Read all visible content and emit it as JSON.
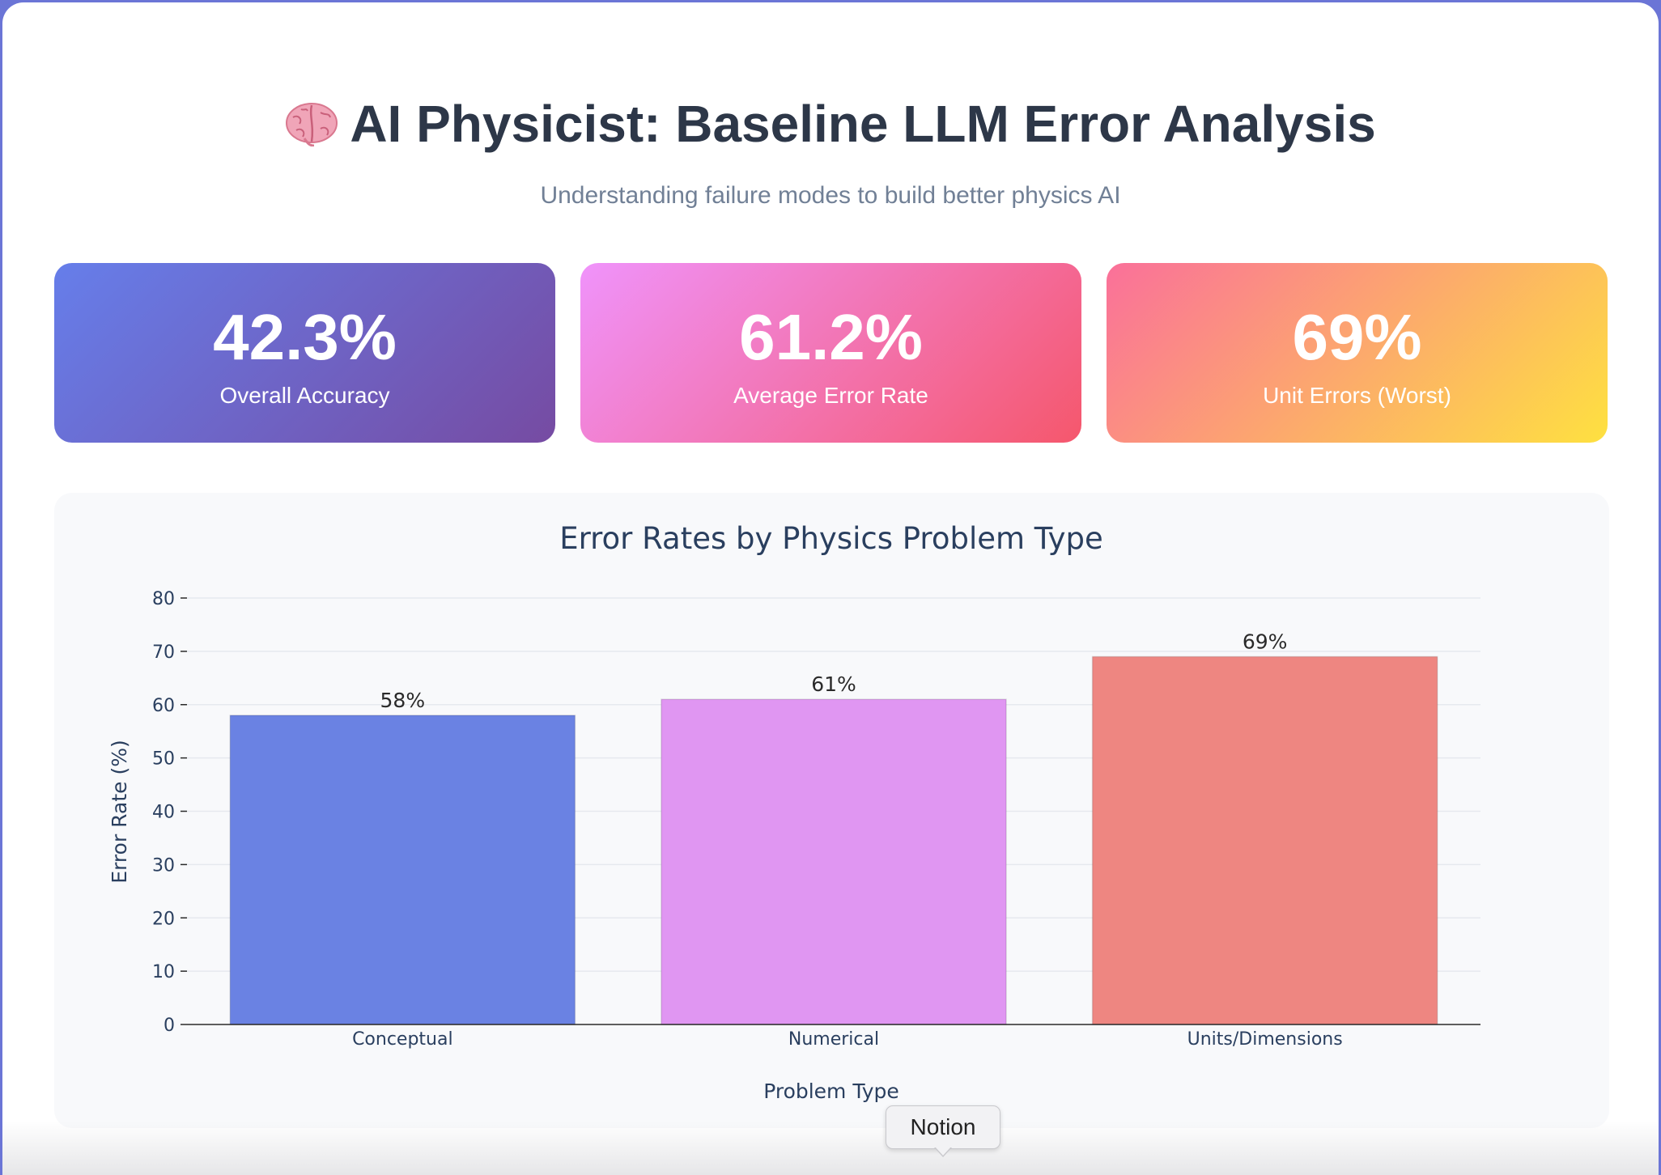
{
  "header": {
    "title": "AI Physicist: Baseline LLM Error Analysis",
    "title_icon": "brain-emoji",
    "subtitle": "Understanding failure modes to build better physics AI"
  },
  "stats": [
    {
      "value": "42.3%",
      "label": "Overall Accuracy"
    },
    {
      "value": "61.2%",
      "label": "Average Error Rate"
    },
    {
      "value": "69%",
      "label": "Unit Errors (Worst)"
    }
  ],
  "chart_data": {
    "type": "bar",
    "title": "Error Rates by Physics Problem Type",
    "xlabel": "Problem Type",
    "ylabel": "Error Rate (%)",
    "categories": [
      "Conceptual",
      "Numerical",
      "Units/Dimensions"
    ],
    "values": [
      58,
      61,
      69
    ],
    "data_labels": [
      "58%",
      "61%",
      "69%"
    ],
    "colors": [
      "#6a82e3",
      "#e096f2",
      "#ee8681"
    ],
    "ylim": [
      0,
      80
    ],
    "yticks": [
      0,
      10,
      20,
      30,
      40,
      50,
      60,
      70,
      80
    ],
    "grid": true
  },
  "tooltip": {
    "label": "Notion"
  }
}
